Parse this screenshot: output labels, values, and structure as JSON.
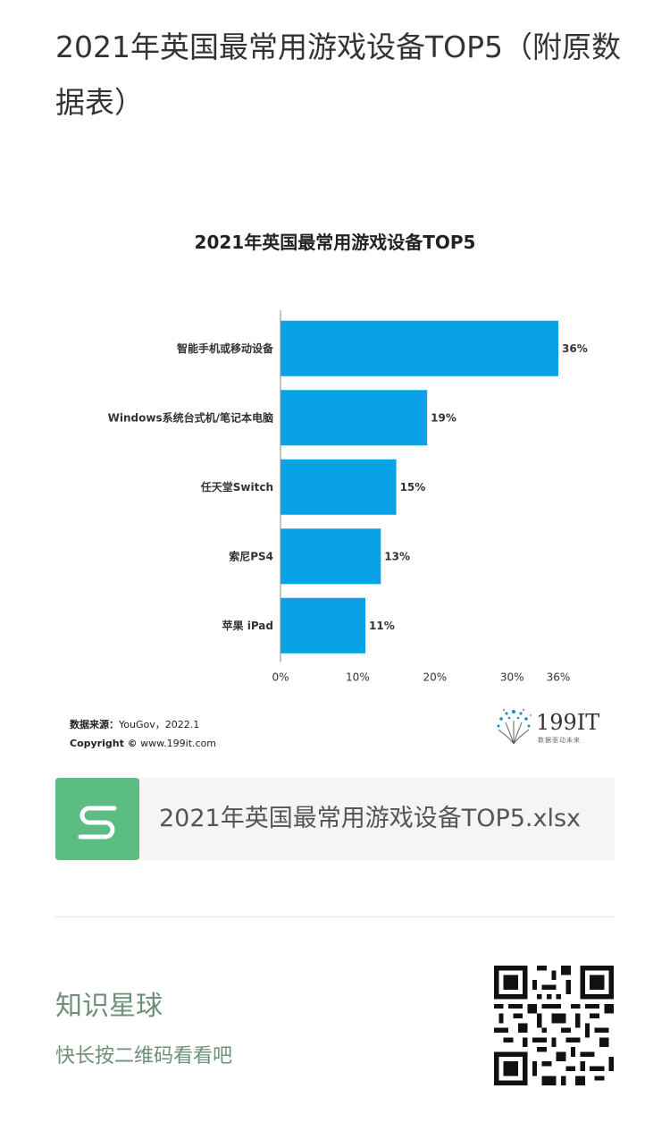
{
  "article": {
    "title": "2021年英国最常用游戏设备TOP5（附原数据表）"
  },
  "chart_data": {
    "type": "bar",
    "orientation": "horizontal",
    "title": "2021年英国最常用游戏设备TOP5",
    "categories": [
      "智能手机或移动设备",
      "Windows系统台式机/笔记本电脑",
      "任天堂Switch",
      "索尼PS4",
      "苹果 iPad"
    ],
    "values": [
      36,
      19,
      15,
      13,
      11
    ],
    "value_labels": [
      "36%",
      "19%",
      "15%",
      "13%",
      "11%"
    ],
    "xticks": [
      0,
      10,
      20,
      30,
      36
    ],
    "xtick_labels": [
      "0%",
      "10%",
      "20%",
      "30%",
      "36%"
    ],
    "xlim": [
      0,
      36
    ],
    "grid": false,
    "bar_color": "#0aa2e6"
  },
  "source": {
    "label": "数据来源：",
    "value": "YouGov，2022.1",
    "copyright_label": "Copyright ©",
    "copyright_value": "www.199it.com"
  },
  "logo": {
    "text": "199IT",
    "tagline": "数据驱动未来"
  },
  "file": {
    "icon": "spreadsheet-s-icon",
    "name": "2021年英国最常用游戏设备TOP5.xlsx",
    "icon_color": "#5cbd83"
  },
  "planet": {
    "title": "知识星球",
    "subtitle": "快长按二维码看看吧",
    "accent": "#6e8f78"
  }
}
